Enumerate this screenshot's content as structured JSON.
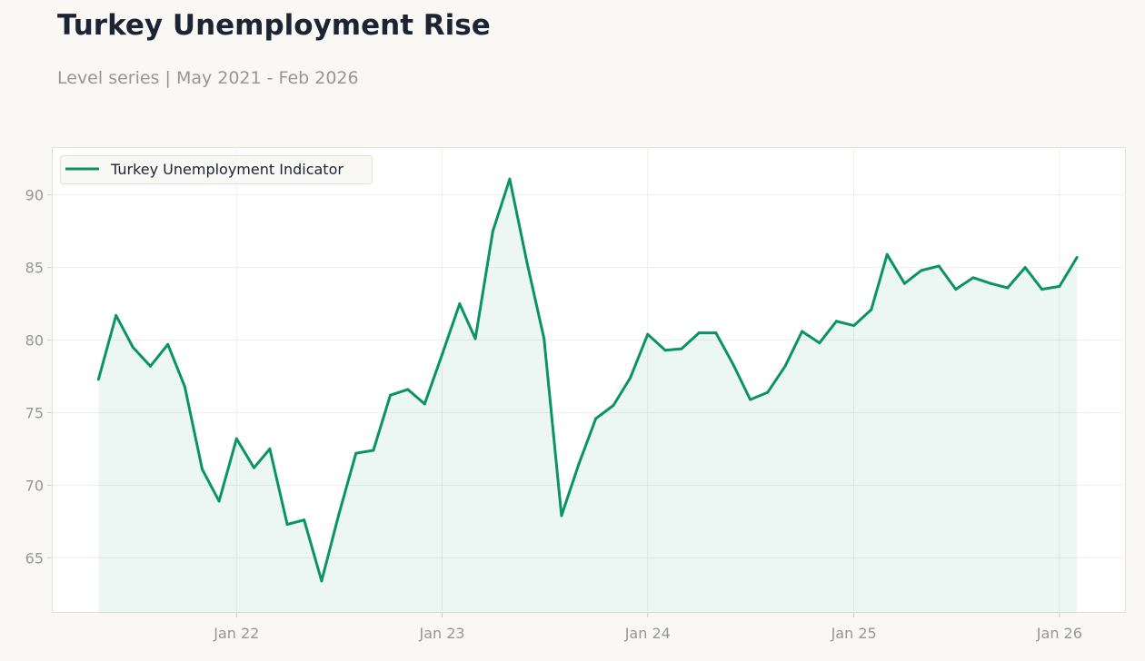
{
  "title": "Turkey Unemployment Rise",
  "subtitle": "Level series | May 2021 - Feb 2026",
  "chart_data": {
    "type": "area",
    "title": "Turkey Unemployment Rise",
    "subtitle": "Level series | May 2021 - Feb 2026",
    "xlabel": "",
    "ylabel": "",
    "ylim": [
      61.2,
      93.3
    ],
    "xlim": [
      "2021-02-07",
      "2026-04-29"
    ],
    "yticks": [
      65,
      70,
      75,
      80,
      85,
      90
    ],
    "xticks": [
      {
        "date": "2022-01-01",
        "label": "Jan 22"
      },
      {
        "date": "2023-01-01",
        "label": "Jan 23"
      },
      {
        "date": "2024-01-01",
        "label": "Jan 24"
      },
      {
        "date": "2025-01-01",
        "label": "Jan 25"
      },
      {
        "date": "2026-01-01",
        "label": "Jan 26"
      }
    ],
    "grid": true,
    "legend_placement": "top-left",
    "colors": {
      "line": "#0a9466",
      "fill": "#0a9466",
      "grid": "#eeeeea"
    },
    "series": [
      {
        "name": "Turkey Unemployment Indicator",
        "start": "2021-05",
        "frequency": "monthly",
        "values": [
          77.3,
          81.7,
          79.5,
          78.2,
          79.7,
          76.8,
          71.1,
          68.9,
          73.2,
          71.2,
          72.5,
          67.3,
          67.6,
          63.4,
          67.9,
          72.2,
          72.4,
          76.2,
          76.6,
          75.6,
          79.0,
          82.5,
          80.1,
          87.5,
          91.1,
          85.3,
          80.1,
          67.9,
          71.5,
          74.6,
          75.5,
          77.4,
          80.4,
          79.3,
          79.4,
          80.5,
          80.5,
          78.3,
          75.9,
          76.4,
          78.2,
          80.6,
          79.8,
          81.3,
          81.0,
          82.1,
          85.9,
          83.9,
          84.8,
          85.1,
          83.5,
          84.3,
          83.9,
          83.6,
          85.0,
          83.5,
          83.7,
          85.7
        ]
      }
    ]
  }
}
